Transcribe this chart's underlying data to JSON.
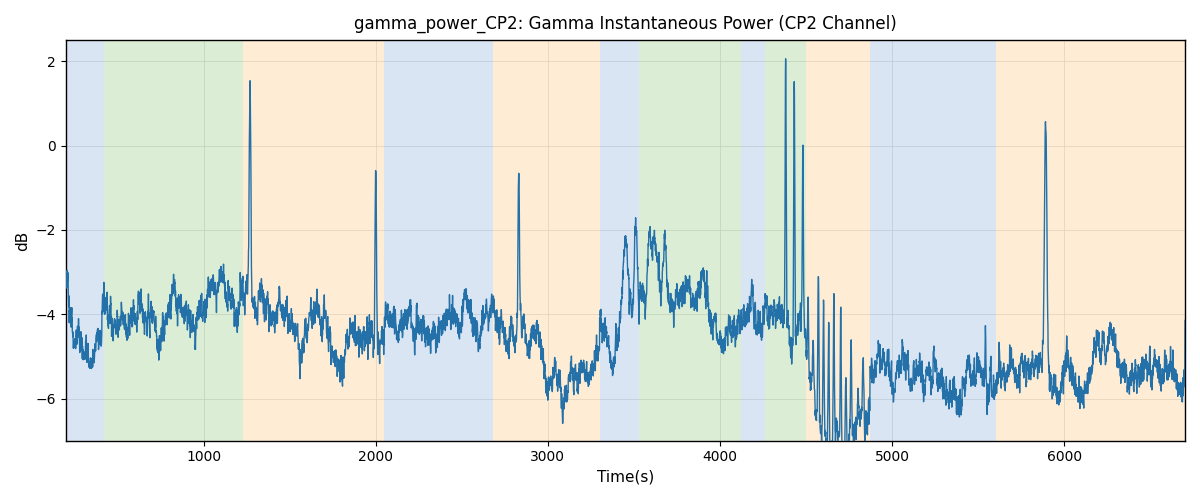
{
  "title": "gamma_power_CP2: Gamma Instantaneous Power (CP2 Channel)",
  "xlabel": "Time(s)",
  "ylabel": "dB",
  "xlim": [
    200,
    6700
  ],
  "ylim": [
    -7.0,
    2.5
  ],
  "yticks": [
    -6,
    -4,
    -2,
    0,
    2
  ],
  "figsize": [
    12,
    5
  ],
  "dpi": 100,
  "line_color": "#2371a8",
  "line_width": 1.0,
  "grid_color": "#cccccc",
  "colored_bands": [
    {
      "xmin": 200,
      "xmax": 420,
      "color": "#aec6e8",
      "alpha": 0.45
    },
    {
      "xmin": 420,
      "xmax": 1230,
      "color": "#b0d9a0",
      "alpha": 0.45
    },
    {
      "xmin": 1230,
      "xmax": 2050,
      "color": "#fdd5a0",
      "alpha": 0.45
    },
    {
      "xmin": 2050,
      "xmax": 2680,
      "color": "#aec6e8",
      "alpha": 0.45
    },
    {
      "xmin": 2680,
      "xmax": 3300,
      "color": "#fdd5a0",
      "alpha": 0.45
    },
    {
      "xmin": 3300,
      "xmax": 3530,
      "color": "#aec6e8",
      "alpha": 0.45
    },
    {
      "xmin": 3530,
      "xmax": 3700,
      "color": "#b0d9a0",
      "alpha": 0.45
    },
    {
      "xmin": 3700,
      "xmax": 4120,
      "color": "#b0d9a0",
      "alpha": 0.45
    },
    {
      "xmin": 4120,
      "xmax": 4260,
      "color": "#aec6e8",
      "alpha": 0.45
    },
    {
      "xmin": 4260,
      "xmax": 4500,
      "color": "#b0d9a0",
      "alpha": 0.45
    },
    {
      "xmin": 4500,
      "xmax": 4870,
      "color": "#fdd5a0",
      "alpha": 0.45
    },
    {
      "xmin": 4870,
      "xmax": 5600,
      "color": "#aec6e8",
      "alpha": 0.45
    },
    {
      "xmin": 5600,
      "xmax": 5830,
      "color": "#fdd5a0",
      "alpha": 0.45
    },
    {
      "xmin": 5830,
      "xmax": 6700,
      "color": "#fdd5a0",
      "alpha": 0.45
    }
  ],
  "seed": 42,
  "n_points": 6500
}
